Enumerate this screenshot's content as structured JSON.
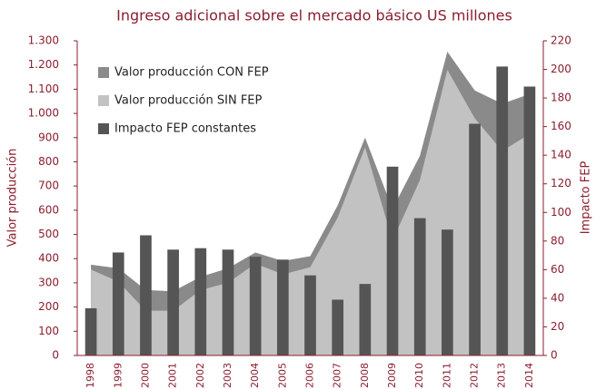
{
  "chart_data": {
    "type": "bar_area_combo",
    "title": "Ingreso adicional sobre el mercado básico US millones",
    "ylabel": "Valor producción",
    "y2label": "Impacto FEP",
    "categories": [
      "1998",
      "1999",
      "2000",
      "2001",
      "2002",
      "2003",
      "2004",
      "2005",
      "2006",
      "2007",
      "2008",
      "2009",
      "2010",
      "2011",
      "2012",
      "2013",
      "2014"
    ],
    "series": [
      {
        "name": "Valor producción CON FEP",
        "color": "#8a8a8a",
        "kind": "area",
        "axis": "y",
        "values": [
          375,
          360,
          270,
          265,
          325,
          360,
          425,
          390,
          410,
          620,
          900,
          605,
          825,
          1255,
          1095,
          1040,
          1080
        ]
      },
      {
        "name": "Valor producción SIN FEP",
        "color": "#c2c2c2",
        "kind": "area",
        "axis": "y",
        "values": [
          355,
          305,
          185,
          185,
          270,
          300,
          380,
          335,
          365,
          570,
          860,
          475,
          725,
          1180,
          980,
          845,
          915
        ]
      },
      {
        "name": "Impacto FEP constantes",
        "color": "#555555",
        "kind": "bar",
        "axis": "y2",
        "values": [
          33,
          72,
          84,
          74,
          75,
          74,
          69,
          67,
          56,
          39,
          50,
          132,
          96,
          88,
          162,
          202,
          188
        ]
      }
    ],
    "ylim": [
      0,
      1300
    ],
    "yticks": [
      0,
      100,
      200,
      300,
      400,
      500,
      600,
      700,
      800,
      900,
      {
        "value": 1000,
        "label": "1.000"
      },
      {
        "value": 1100,
        "label": "1.100"
      },
      {
        "value": 1200,
        "label": "1.200"
      },
      {
        "value": 1300,
        "label": "1.300"
      }
    ],
    "y2lim": [
      0,
      220
    ],
    "y2ticks": [
      0,
      20,
      40,
      60,
      80,
      100,
      120,
      140,
      160,
      180,
      200,
      220
    ],
    "legend": "upper left"
  }
}
